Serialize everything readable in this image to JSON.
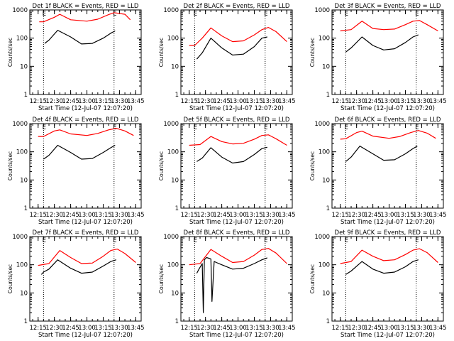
{
  "colors": {
    "events": "#000000",
    "lld": "#ff0000",
    "axes": "#000000",
    "background": "#ffffff"
  },
  "chart_data": [
    {
      "type": "line",
      "title": "Det 1f BLACK = Events, RED = LLD",
      "xlabel": "Start Time (12-Jul-07 12:07:20)",
      "ylabel": "Counts/sec",
      "yscale": "log",
      "ylim": [
        1,
        1000
      ],
      "x_tick_labels": [
        "12:15",
        "12:30",
        "12:45",
        "13:00",
        "13:15",
        "13:30",
        "13:45"
      ],
      "y_tick_labels": [
        "1",
        "10",
        "100",
        "1000"
      ],
      "vertical_lines": [
        "12:20",
        "13:25"
      ],
      "markers": [
        "E",
        "E"
      ],
      "series": [
        {
          "x": [
            "12:16",
            "12:20",
            "12:30",
            "12:35",
            "12:45",
            "13:00",
            "13:10",
            "13:20",
            "13:25",
            "13:35",
            "13:40"
          ],
          "values": [
            380,
            380,
            550,
            700,
            450,
            400,
            470,
            680,
            800,
            700,
            450
          ]
        },
        {
          "x": [
            "12:21",
            "12:25",
            "12:33",
            "12:45",
            "12:55",
            "13:05",
            "13:15",
            "13:22",
            "13:26"
          ],
          "values": [
            65,
            85,
            190,
            110,
            62,
            65,
            100,
            150,
            180
          ]
        }
      ]
    },
    {
      "type": "line",
      "title": "Det 2f BLACK = Events, RED = LLD",
      "xlabel": "Start Time (12-Jul-07 12:07:20)",
      "ylabel": "Counts/sec",
      "yscale": "log",
      "ylim": [
        1,
        1000
      ],
      "x_tick_labels": [
        "12:15",
        "12:30",
        "12:45",
        "13:00",
        "13:15",
        "13:30",
        "13:45"
      ],
      "y_tick_labels": [
        "1",
        "10",
        "100",
        "1000"
      ],
      "vertical_lines": [
        "12:20",
        "13:25"
      ],
      "markers": [
        "E",
        "E"
      ],
      "series": [
        {
          "x": [
            "12:15",
            "12:20",
            "12:27",
            "12:35",
            "12:45",
            "12:55",
            "13:05",
            "13:15",
            "13:22",
            "13:28",
            "13:35",
            "13:45"
          ],
          "values": [
            55,
            55,
            100,
            230,
            120,
            75,
            80,
            130,
            200,
            240,
            170,
            75
          ]
        },
        {
          "x": [
            "12:22",
            "12:27",
            "12:35",
            "12:45",
            "12:55",
            "13:05",
            "13:15",
            "13:22",
            "13:27"
          ],
          "values": [
            18,
            30,
            100,
            45,
            25,
            27,
            50,
            100,
            110
          ]
        }
      ]
    },
    {
      "type": "line",
      "title": "Det 3f BLACK = Events, RED = LLD",
      "xlabel": "Start Time (12-Jul-07 12:07:20)",
      "ylabel": "Counts/sec",
      "yscale": "log",
      "ylim": [
        1,
        1000
      ],
      "x_tick_labels": [
        "12:15",
        "12:30",
        "12:45",
        "13:00",
        "13:15",
        "13:30",
        "13:45"
      ],
      "y_tick_labels": [
        "1",
        "10",
        "100",
        "1000"
      ],
      "vertical_lines": [
        "12:20",
        "13:25"
      ],
      "markers": [
        "E",
        "E"
      ],
      "series": [
        {
          "x": [
            "12:15",
            "12:25",
            "12:35",
            "12:45",
            "12:55",
            "13:05",
            "13:15",
            "13:22",
            "13:28",
            "13:35",
            "13:45"
          ],
          "values": [
            180,
            200,
            400,
            220,
            200,
            210,
            300,
            400,
            420,
            300,
            180
          ]
        },
        {
          "x": [
            "12:20",
            "12:25",
            "12:35",
            "12:45",
            "12:55",
            "13:05",
            "13:15",
            "13:22",
            "13:27"
          ],
          "values": [
            32,
            45,
            110,
            55,
            38,
            42,
            70,
            110,
            130
          ]
        }
      ]
    },
    {
      "type": "line",
      "title": "Det 4f BLACK = Events, RED = LLD",
      "xlabel": "Start Time (12-Jul-07 12:07:20)",
      "ylabel": "Counts/sec",
      "yscale": "log",
      "ylim": [
        1,
        1000
      ],
      "x_tick_labels": [
        "12:15",
        "12:30",
        "12:45",
        "13:00",
        "13:15",
        "13:30",
        "13:45"
      ],
      "y_tick_labels": [
        "1",
        "10",
        "100",
        "1000"
      ],
      "vertical_lines": [
        "12:20",
        "13:25"
      ],
      "markers": [
        "E",
        "E"
      ],
      "series": [
        {
          "x": [
            "12:15",
            "12:20",
            "12:30",
            "12:35",
            "12:45",
            "13:00",
            "13:10",
            "13:20",
            "13:27",
            "13:35",
            "13:43"
          ],
          "values": [
            350,
            350,
            550,
            600,
            430,
            380,
            450,
            600,
            680,
            550,
            380
          ]
        },
        {
          "x": [
            "12:20",
            "12:25",
            "12:33",
            "12:45",
            "12:55",
            "13:05",
            "13:15",
            "13:22",
            "13:26"
          ],
          "values": [
            55,
            75,
            170,
            95,
            55,
            58,
            95,
            140,
            170
          ]
        }
      ]
    },
    {
      "type": "line",
      "title": "Det 5f BLACK = Events, RED = LLD",
      "xlabel": "Start Time (12-Jul-07 12:07:20)",
      "ylabel": "Counts/sec",
      "yscale": "log",
      "ylim": [
        1,
        1000
      ],
      "x_tick_labels": [
        "12:15",
        "12:30",
        "12:45",
        "13:00",
        "13:15",
        "13:30",
        "13:45"
      ],
      "y_tick_labels": [
        "1",
        "10",
        "100",
        "1000"
      ],
      "vertical_lines": [
        "12:20",
        "13:25"
      ],
      "markers": [
        "E",
        "E"
      ],
      "series": [
        {
          "x": [
            "12:15",
            "12:25",
            "12:35",
            "12:45",
            "12:55",
            "13:05",
            "13:15",
            "13:22",
            "13:28",
            "13:35",
            "13:45"
          ],
          "values": [
            170,
            180,
            350,
            230,
            190,
            200,
            280,
            380,
            400,
            290,
            170
          ]
        },
        {
          "x": [
            "12:22",
            "12:27",
            "12:35",
            "12:45",
            "12:55",
            "13:05",
            "13:15",
            "13:22",
            "13:27"
          ],
          "values": [
            45,
            60,
            140,
            65,
            40,
            45,
            80,
            130,
            145
          ]
        }
      ]
    },
    {
      "type": "line",
      "title": "Det 6f BLACK = Events, RED = LLD",
      "xlabel": "Start Time (12-Jul-07 12:07:20)",
      "ylabel": "Counts/sec",
      "yscale": "log",
      "ylim": [
        1,
        1000
      ],
      "x_tick_labels": [
        "12:15",
        "12:30",
        "12:45",
        "13:00",
        "13:15",
        "13:30",
        "13:45"
      ],
      "y_tick_labels": [
        "1",
        "10",
        "100",
        "1000"
      ],
      "vertical_lines": [
        "12:20",
        "13:25"
      ],
      "markers": [
        "E",
        "E"
      ],
      "series": [
        {
          "x": [
            "12:15",
            "12:20",
            "12:30",
            "12:35",
            "12:45",
            "13:00",
            "13:10",
            "13:20",
            "13:27",
            "13:35",
            "13:43"
          ],
          "values": [
            280,
            290,
            480,
            540,
            360,
            300,
            350,
            480,
            570,
            460,
            300
          ]
        },
        {
          "x": [
            "12:20",
            "12:25",
            "12:33",
            "12:45",
            "12:55",
            "13:05",
            "13:15",
            "13:22",
            "13:26"
          ],
          "values": [
            45,
            65,
            160,
            85,
            50,
            52,
            85,
            130,
            160
          ]
        }
      ]
    },
    {
      "type": "line",
      "title": "Det 7f BLACK = Events, RED = LLD",
      "xlabel": "Start Time (12-Jul-07 12:07:20)",
      "ylabel": "Counts/sec",
      "yscale": "log",
      "ylim": [
        1,
        1000
      ],
      "x_tick_labels": [
        "12:15",
        "12:30",
        "12:45",
        "13:00",
        "13:15",
        "13:30",
        "13:45"
      ],
      "y_tick_labels": [
        "1",
        "10",
        "100",
        "1000"
      ],
      "vertical_lines": [
        "12:20",
        "13:25"
      ],
      "markers": [
        "E",
        "E"
      ],
      "series": [
        {
          "x": [
            "12:15",
            "12:25",
            "12:35",
            "12:45",
            "12:55",
            "13:05",
            "13:15",
            "13:22",
            "13:28",
            "13:35",
            "13:45"
          ],
          "values": [
            95,
            110,
            320,
            180,
            110,
            115,
            200,
            320,
            360,
            250,
            120
          ]
        },
        {
          "x": [
            "12:18",
            "12:20",
            "12:25",
            "12:33",
            "12:45",
            "12:55",
            "13:05",
            "13:15",
            "13:22",
            "13:27"
          ],
          "values": [
            45,
            55,
            70,
            150,
            75,
            50,
            55,
            90,
            130,
            150
          ]
        }
      ]
    },
    {
      "type": "line",
      "title": "Det 8f BLACK = Events, RED = LLD",
      "xlabel": "Start Time (12-Jul-07 12:07:20)",
      "ylabel": "Counts/sec",
      "yscale": "log",
      "ylim": [
        1,
        1000
      ],
      "x_tick_labels": [
        "12:15",
        "12:30",
        "12:45",
        "13:00",
        "13:15",
        "13:30",
        "13:45"
      ],
      "y_tick_labels": [
        "1",
        "10",
        "100",
        "1000"
      ],
      "vertical_lines": [
        "12:20",
        "13:25"
      ],
      "markers": [
        "E",
        "E"
      ],
      "series": [
        {
          "x": [
            "12:15",
            "12:25",
            "12:35",
            "12:45",
            "12:55",
            "13:05",
            "13:15",
            "13:22",
            "13:28",
            "13:35",
            "13:45"
          ],
          "values": [
            100,
            110,
            350,
            200,
            120,
            130,
            220,
            350,
            380,
            260,
            110
          ]
        },
        {
          "x": [
            "12:22",
            "12:24",
            "12:27",
            "12:28",
            "12:29",
            "12:31",
            "12:33",
            "12:35",
            "12:36",
            "12:38",
            "12:40",
            "12:45",
            "12:55",
            "13:05",
            "13:15",
            "13:22",
            "13:27"
          ],
          "values": [
            50,
            70,
            110,
            2,
            150,
            180,
            170,
            160,
            5,
            130,
            120,
            100,
            70,
            75,
            110,
            150,
            175
          ]
        }
      ]
    },
    {
      "type": "line",
      "title": "Det 9f BLACK = Events, RED = LLD",
      "xlabel": "Start Time (12-Jul-07 12:07:20)",
      "ylabel": "Counts/sec",
      "yscale": "log",
      "ylim": [
        1,
        1000
      ],
      "x_tick_labels": [
        "12:15",
        "12:30",
        "12:45",
        "13:00",
        "13:15",
        "13:30",
        "13:45"
      ],
      "y_tick_labels": [
        "1",
        "10",
        "100",
        "1000"
      ],
      "vertical_lines": [
        "12:20",
        "13:25"
      ],
      "markers": [
        "E",
        "E"
      ],
      "series": [
        {
          "x": [
            "12:15",
            "12:25",
            "12:35",
            "12:45",
            "12:55",
            "13:05",
            "13:15",
            "13:22",
            "13:28",
            "13:35",
            "13:45"
          ],
          "values": [
            110,
            130,
            330,
            200,
            140,
            150,
            230,
            330,
            370,
            270,
            120
          ]
        },
        {
          "x": [
            "12:20",
            "12:25",
            "12:35",
            "12:45",
            "12:55",
            "13:05",
            "13:15",
            "13:22",
            "13:27"
          ],
          "values": [
            45,
            60,
            130,
            70,
            50,
            55,
            85,
            130,
            150
          ]
        }
      ]
    }
  ]
}
